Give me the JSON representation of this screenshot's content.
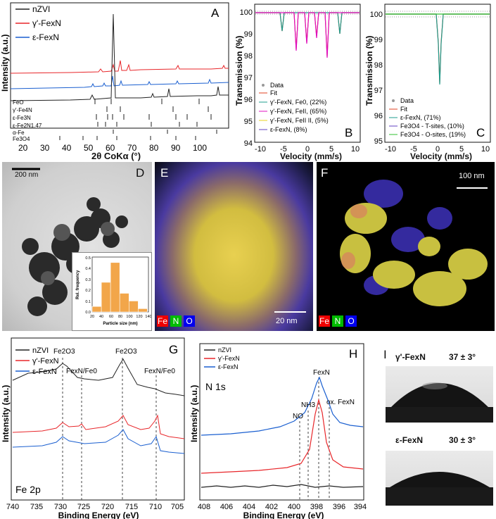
{
  "panels": {
    "A": {
      "label": "A",
      "legend": [
        "nZVI",
        "γ'-FexN",
        "ε-FexN"
      ],
      "ylabel": "Intensity (a.u.)",
      "xlabel": "2θ CoKα (°)",
      "xticks": [
        "20",
        "30",
        "40",
        "50",
        "60",
        "70",
        "80",
        "90",
        "100"
      ],
      "refs": [
        "FeO",
        "γ'-Fe4N",
        "ε-Fe3N",
        "ε-Fe2N1.47",
        "α-Fe",
        "Fe3O4"
      ]
    },
    "B": {
      "label": "B",
      "ylabel": "Transmission (%)",
      "xlabel": "Velocity (mm/s)",
      "yticks": [
        "100",
        "99",
        "98",
        "97",
        "96",
        "95",
        "94"
      ],
      "xticks": [
        "-10",
        "-5",
        "0",
        "5",
        "10"
      ],
      "legend": [
        "Data",
        "Fit",
        "γ'-FexN, Fe0, (22%)",
        "γ'-FexN, FeII, (65%)",
        "γ'-FexN, FeII II, (5%)",
        "ε-FexN, (8%)"
      ]
    },
    "C": {
      "label": "C",
      "ylabel": "Transmission (%)",
      "xlabel": "Velocity (mm/s)",
      "yticks": [
        "100",
        "99",
        "98",
        "97",
        "96",
        "95"
      ],
      "xticks": [
        "-10",
        "-5",
        "0",
        "5",
        "10"
      ],
      "legend": [
        "Data",
        "Fit",
        "ε-FexN, (71%)",
        "Fe3O4 - T-sites, (10%)",
        "Fe3O4 - O-sites, (19%)"
      ]
    },
    "D": {
      "label": "D",
      "scale": "200 nm",
      "inset_ylabel": "Rel. frequency",
      "inset_xlabel": "Particle size (nm)",
      "inset_xticks": [
        "20",
        "40",
        "60",
        "80",
        "100",
        "120",
        "140"
      ],
      "inset_yticks": [
        "0.5",
        "0.4",
        "0.3",
        "0.2",
        "0.1",
        "0.0"
      ]
    },
    "E": {
      "label": "E",
      "scale": "20 nm",
      "chips": [
        "Fe",
        "N",
        "O"
      ]
    },
    "F": {
      "label": "F",
      "scale": "100 nm",
      "chips": [
        "Fe",
        "N",
        "O"
      ]
    },
    "G": {
      "label": "G",
      "legend": [
        "nZVI",
        "γ'-FexN",
        "ε-FexN"
      ],
      "ylabel": "Intensity (a.u.)",
      "xlabel": "Binding Energy (eV)",
      "xticks": [
        "740",
        "735",
        "730",
        "725",
        "720",
        "715",
        "710",
        "705"
      ],
      "annotations": [
        "Fe2O3",
        "Fe2O3",
        "FexN/Fe0",
        "FexN/Fe0"
      ],
      "region": "Fe 2p"
    },
    "H": {
      "label": "H",
      "legend": [
        "nZVI",
        "γ'-FexN",
        "ε-FexN"
      ],
      "ylabel": "Intensity (a.u.)",
      "xlabel": "Binding Energy (eV)",
      "xticks": [
        "408",
        "406",
        "404",
        "402",
        "400",
        "398",
        "396",
        "394"
      ],
      "annotations": [
        "NO",
        "NH3",
        "FexN",
        "ox. FexN"
      ],
      "region": "N 1s"
    },
    "I": {
      "label": "I",
      "top_sample": "γ'-FexN",
      "top_angle": "37 ± 3°",
      "bottom_sample": "ε-FexN",
      "bottom_angle": "30 ± 3°"
    }
  },
  "colors": {
    "nzvi": "#222222",
    "gamma": "#e8262a",
    "eps": "#1a5fd0",
    "fit": "#e04020",
    "teal": "#1f9c8c",
    "magenta": "#e010c0",
    "yellow": "#e8d020",
    "purple": "#6040c0",
    "green": "#30c030",
    "bar": "#f2a64a"
  },
  "chart_data": [
    {
      "type": "histogram",
      "panel": "D inset",
      "categories": [
        "20-40",
        "40-60",
        "60-80",
        "80-100",
        "100-120",
        "120-140"
      ],
      "values": [
        0.05,
        0.27,
        0.45,
        0.17,
        0.1,
        0.03
      ],
      "xlabel": "Particle size (nm)",
      "ylabel": "Rel. frequency",
      "ylim": [
        0,
        0.5
      ]
    }
  ]
}
